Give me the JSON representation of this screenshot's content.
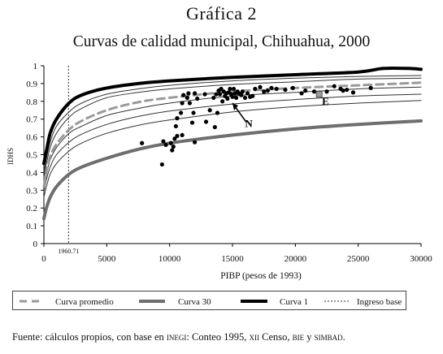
{
  "figure_label": "Gráfica 2",
  "colors": {
    "curva_1": "#000000",
    "curva_30": "#6e6e6e",
    "curva_promedio": "#9a9a9a",
    "intermediate": "#333333",
    "points": "#000000",
    "ingreso_base": "#333333"
  },
  "footnote": {
    "prefix": "Fuente: cálculos propios, con base en ",
    "inegi": "inegi",
    "mid1": ": Conteo 1995, ",
    "xii": "xii",
    "mid2": " Censo, ",
    "bie": "bie",
    "mid3": " y ",
    "simbad": "simbad",
    "suffix": "."
  },
  "chart_data": {
    "type": "line",
    "title": "Curvas de calidad municipal, Chihuahua, 2000",
    "xlabel": "PIBP (pesos de 1993)",
    "ylabel": "IDHS",
    "xlim": [
      0,
      30000
    ],
    "ylim": [
      0,
      1
    ],
    "x_ticks": [
      0,
      5000,
      10000,
      15000,
      20000,
      25000,
      30000
    ],
    "x_tick_labels": [
      "0",
      "5000",
      "10000",
      "15000",
      "20000",
      "25000",
      "30000"
    ],
    "y_ticks": [
      0,
      0.1,
      0.2,
      0.3,
      0.4,
      0.5,
      0.6,
      0.7,
      0.8,
      0.9,
      1
    ],
    "y_tick_labels": [
      "0",
      "0.1",
      "0.2",
      "0.3",
      "0.4",
      "0.5",
      "0.6",
      "0.7",
      "0.8",
      "0.9",
      "1"
    ],
    "grid": false,
    "legend_position": "bottom",
    "vline": {
      "x": 1960.71,
      "label": "1960.71"
    },
    "series": [
      {
        "name": "Curva 1",
        "style": "thick-black",
        "x": [
          0,
          200,
          500,
          1000,
          2000,
          3000,
          5000,
          7500,
          10000,
          15000,
          20000,
          25000,
          27000,
          29000,
          30000
        ],
        "values": [
          0.45,
          0.52,
          0.62,
          0.7,
          0.79,
          0.835,
          0.875,
          0.9,
          0.915,
          0.935,
          0.95,
          0.965,
          0.985,
          0.985,
          0.98
        ]
      },
      {
        "name": "",
        "style": "thin",
        "x": [
          0,
          200,
          500,
          1000,
          2000,
          3000,
          5000,
          7500,
          10000,
          15000,
          20000,
          25000,
          30000
        ],
        "values": [
          0.4,
          0.48,
          0.57,
          0.66,
          0.74,
          0.79,
          0.84,
          0.87,
          0.89,
          0.915,
          0.93,
          0.94,
          0.945
        ]
      },
      {
        "name": "",
        "style": "thin",
        "x": [
          0,
          200,
          500,
          1000,
          2000,
          3000,
          5000,
          7500,
          10000,
          15000,
          20000,
          25000,
          30000
        ],
        "values": [
          0.37,
          0.45,
          0.54,
          0.62,
          0.71,
          0.76,
          0.82,
          0.85,
          0.87,
          0.895,
          0.91,
          0.925,
          0.93
        ]
      },
      {
        "name": "Curva promedio",
        "style": "dashed-gray",
        "x": [
          0,
          200,
          500,
          1000,
          2000,
          3000,
          5000,
          7500,
          10000,
          15000,
          20000,
          25000,
          30000
        ],
        "values": [
          0.32,
          0.4,
          0.49,
          0.56,
          0.64,
          0.69,
          0.75,
          0.795,
          0.82,
          0.855,
          0.875,
          0.89,
          0.905
        ]
      },
      {
        "name": "",
        "style": "thin",
        "x": [
          0,
          200,
          500,
          1000,
          2000,
          3000,
          5000,
          7500,
          10000,
          15000,
          20000,
          25000,
          30000
        ],
        "values": [
          0.32,
          0.39,
          0.47,
          0.54,
          0.62,
          0.66,
          0.72,
          0.76,
          0.79,
          0.83,
          0.85,
          0.87,
          0.88
        ]
      },
      {
        "name": "",
        "style": "thin",
        "x": [
          0,
          200,
          500,
          1000,
          2000,
          3000,
          5000,
          7500,
          10000,
          15000,
          20000,
          25000,
          30000
        ],
        "values": [
          0.29,
          0.36,
          0.43,
          0.5,
          0.57,
          0.615,
          0.67,
          0.715,
          0.745,
          0.785,
          0.81,
          0.83,
          0.84
        ]
      },
      {
        "name": "",
        "style": "thin",
        "x": [
          0,
          200,
          500,
          1000,
          2000,
          3000,
          5000,
          7500,
          10000,
          15000,
          20000,
          25000,
          30000
        ],
        "values": [
          0.26,
          0.32,
          0.39,
          0.45,
          0.52,
          0.565,
          0.62,
          0.665,
          0.695,
          0.74,
          0.77,
          0.79,
          0.805
        ]
      },
      {
        "name": "Curva 30",
        "style": "thick-gray",
        "x": [
          0,
          200,
          500,
          1000,
          2000,
          3000,
          5000,
          7500,
          10000,
          15000,
          20000,
          25000,
          30000
        ],
        "values": [
          0.14,
          0.2,
          0.26,
          0.32,
          0.39,
          0.43,
          0.48,
          0.53,
          0.565,
          0.61,
          0.645,
          0.67,
          0.69
        ]
      }
    ],
    "points": [
      [
        7800,
        0.565
      ],
      [
        9400,
        0.445
      ],
      [
        9500,
        0.575
      ],
      [
        9700,
        0.555
      ],
      [
        10100,
        0.565
      ],
      [
        10200,
        0.525
      ],
      [
        10300,
        0.545
      ],
      [
        10400,
        0.59
      ],
      [
        10500,
        0.66
      ],
      [
        10600,
        0.605
      ],
      [
        10600,
        0.705
      ],
      [
        10900,
        0.735
      ],
      [
        11000,
        0.61
      ],
      [
        11000,
        0.79
      ],
      [
        11100,
        0.835
      ],
      [
        11400,
        0.82
      ],
      [
        11500,
        0.845
      ],
      [
        11600,
        0.79
      ],
      [
        11800,
        0.68
      ],
      [
        11900,
        0.735
      ],
      [
        12000,
        0.57
      ],
      [
        12000,
        0.845
      ],
      [
        12200,
        0.815
      ],
      [
        12800,
        0.84
      ],
      [
        12900,
        0.685
      ],
      [
        13200,
        0.75
      ],
      [
        13500,
        0.82
      ],
      [
        13600,
        0.655
      ],
      [
        13700,
        0.84
      ],
      [
        13800,
        0.735
      ],
      [
        13900,
        0.86
      ],
      [
        14000,
        0.84
      ],
      [
        14100,
        0.87
      ],
      [
        14200,
        0.8
      ],
      [
        14300,
        0.855
      ],
      [
        14400,
        0.83
      ],
      [
        14500,
        0.845
      ],
      [
        14600,
        0.815
      ],
      [
        14700,
        0.85
      ],
      [
        14800,
        0.87
      ],
      [
        14900,
        0.84
      ],
      [
        15000,
        0.825
      ],
      [
        15100,
        0.87
      ],
      [
        15200,
        0.845
      ],
      [
        15300,
        0.82
      ],
      [
        15400,
        0.855
      ],
      [
        15500,
        0.845
      ],
      [
        15600,
        0.84
      ],
      [
        15700,
        0.835
      ],
      [
        15800,
        0.855
      ],
      [
        16000,
        0.82
      ],
      [
        16200,
        0.845
      ],
      [
        16400,
        0.825
      ],
      [
        16600,
        0.83
      ],
      [
        16800,
        0.87
      ],
      [
        17200,
        0.88
      ],
      [
        17500,
        0.855
      ],
      [
        17800,
        0.86
      ],
      [
        18100,
        0.875
      ],
      [
        18500,
        0.87
      ],
      [
        19200,
        0.865
      ],
      [
        19800,
        0.875
      ],
      [
        20500,
        0.845
      ],
      [
        20800,
        0.86
      ],
      [
        21500,
        0.855
      ],
      [
        22500,
        0.855
      ],
      [
        23100,
        0.885
      ],
      [
        23600,
        0.87
      ],
      [
        23800,
        0.86
      ],
      [
        24100,
        0.865
      ],
      [
        24600,
        0.85
      ],
      [
        26000,
        0.875
      ]
    ],
    "annotations": [
      {
        "text": "N",
        "x": 16300,
        "y": 0.655,
        "arrow_to": [
          15000,
          0.79
        ]
      },
      {
        "text": "E",
        "x": 22400,
        "y": 0.78,
        "marker_at": [
          21900,
          0.84
        ]
      }
    ],
    "legend": [
      {
        "label": "Curva promedio",
        "style": "dashed-gray"
      },
      {
        "label": "Curva 30",
        "style": "thick-gray"
      },
      {
        "label": "Curva 1",
        "style": "thick-black"
      },
      {
        "label": "Ingreso base",
        "style": "dotted"
      }
    ]
  }
}
